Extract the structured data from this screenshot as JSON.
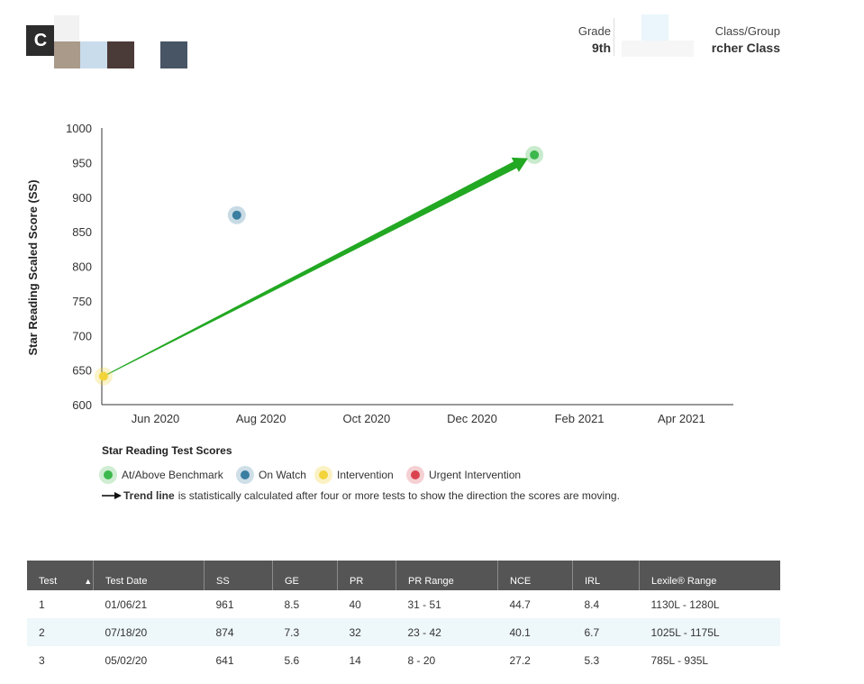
{
  "header": {
    "logo_letter": "C",
    "grade_label": "Grade",
    "grade_value": "9th",
    "class_label": "Class/Group",
    "class_value": "rcher Class"
  },
  "colors": {
    "at_above_benchmark": "#3cb84c",
    "on_watch": "#3a7ea1",
    "intervention": "#f2d43a",
    "urgent_intervention": "#d9434f",
    "trend_line": "#22a822",
    "table_header": "#555555"
  },
  "chart_data": {
    "type": "scatter",
    "ylabel": "Star Reading Scaled Score (SS)",
    "ylim": [
      600,
      1000
    ],
    "yticks": [
      600,
      650,
      700,
      750,
      800,
      850,
      900,
      950,
      1000
    ],
    "x_tick_labels": [
      "Jun 2020",
      "Aug 2020",
      "Oct 2020",
      "Dec 2020",
      "Feb 2021",
      "Apr 2021"
    ],
    "x_tick_dates": [
      "2020-06-01",
      "2020-08-01",
      "2020-10-01",
      "2020-12-01",
      "2021-02-01",
      "2021-04-01"
    ],
    "xlim": [
      "2020-05-01",
      "2021-05-01"
    ],
    "points": [
      {
        "date": "2020-05-02",
        "score": 641,
        "status": "intervention"
      },
      {
        "date": "2020-07-18",
        "score": 874,
        "status": "on_watch"
      },
      {
        "date": "2021-01-06",
        "score": 961,
        "status": "at_above_benchmark"
      }
    ],
    "trend_line": {
      "start": {
        "date": "2020-05-02",
        "score": 641
      },
      "end": {
        "date": "2021-01-06",
        "score": 961
      }
    },
    "grid": false
  },
  "legend": {
    "title": "Star Reading Test Scores",
    "items": [
      {
        "label": "At/Above Benchmark",
        "status": "at_above_benchmark"
      },
      {
        "label": "On Watch",
        "status": "on_watch"
      },
      {
        "label": "Intervention",
        "status": "intervention"
      },
      {
        "label": "Urgent Intervention",
        "status": "urgent_intervention"
      }
    ],
    "trend_bold": "Trend line",
    "trend_text": "is statistically calculated after four or more tests to show the direction the scores are moving."
  },
  "table": {
    "columns": [
      "Test",
      "Test Date",
      "SS",
      "GE",
      "PR",
      "PR Range",
      "NCE",
      "IRL",
      "Lexile® Range"
    ],
    "rows": [
      [
        "1",
        "01/06/21",
        "961",
        "8.5",
        "40",
        "31 - 51",
        "44.7",
        "8.4",
        "1130L - 1280L"
      ],
      [
        "2",
        "07/18/20",
        "874",
        "7.3",
        "32",
        "23 - 42",
        "40.1",
        "6.7",
        "1025L - 1175L"
      ],
      [
        "3",
        "05/02/20",
        "641",
        "5.6",
        "14",
        "8 - 20",
        "27.2",
        "5.3",
        "785L - 935L"
      ]
    ]
  }
}
